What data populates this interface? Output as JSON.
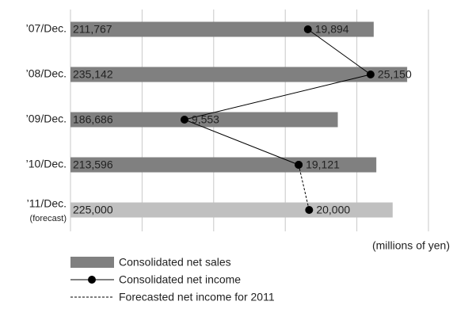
{
  "chart_data": {
    "type": "bar-line",
    "categories": [
      "’07/Dec.",
      "’08/Dec.",
      "’09/Dec.",
      "’10/Dec.",
      "’11/Dec."
    ],
    "annotation": "(forecast)",
    "unit_label": "(millions of yen)",
    "xlim": [
      0,
      250000
    ],
    "xticks": [
      0,
      50000,
      100000,
      150000,
      200000,
      250000
    ],
    "x2lim": [
      0,
      30000
    ],
    "grid": true,
    "series": [
      {
        "name": "Consolidated net sales",
        "type": "bar",
        "colors": [
          "#808080",
          "#808080",
          "#808080",
          "#808080",
          "#c0c0c0"
        ],
        "values": [
          211767,
          235142,
          186686,
          213596,
          225000
        ],
        "value_labels": [
          "211,767",
          "235,142",
          "186,686",
          "213,596",
          "225,000"
        ]
      },
      {
        "name": "Consolidated net income",
        "type": "line",
        "axis": "x2",
        "color": "#000000",
        "values": [
          19894,
          25150,
          9553,
          19121,
          null
        ],
        "value_labels": [
          "19,894",
          "25,150",
          "9,553",
          "19,121",
          null
        ]
      },
      {
        "name": "Forecasted net income for 2011",
        "type": "line",
        "axis": "x2",
        "color": "#000000",
        "dashed": true,
        "values": [
          null,
          null,
          null,
          19121,
          20000
        ],
        "value_labels": [
          null,
          null,
          null,
          null,
          "20,000"
        ]
      }
    ]
  }
}
